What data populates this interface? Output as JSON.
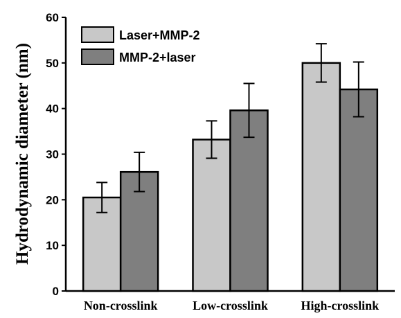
{
  "chart_data": {
    "type": "bar",
    "title": "",
    "xlabel": "",
    "ylabel": "Hydrodynamic diameter (nm)",
    "ylim": [
      0,
      60
    ],
    "yticks": [
      0,
      10,
      20,
      30,
      40,
      50,
      60
    ],
    "categories": [
      "Non-crosslink",
      "Low-crosslink",
      "High-crosslink"
    ],
    "series": [
      {
        "name": "Laser+MMP-2",
        "color": "#c8c8c8",
        "values": [
          20.5,
          33.2,
          50.0
        ],
        "errors": [
          3.3,
          4.1,
          4.2
        ]
      },
      {
        "name": "MMP-2+laser",
        "color": "#7f7f7f",
        "values": [
          26.1,
          39.6,
          44.2
        ],
        "errors": [
          4.3,
          5.9,
          6.0
        ]
      }
    ],
    "legend_position": "top-left",
    "grid": false
  }
}
